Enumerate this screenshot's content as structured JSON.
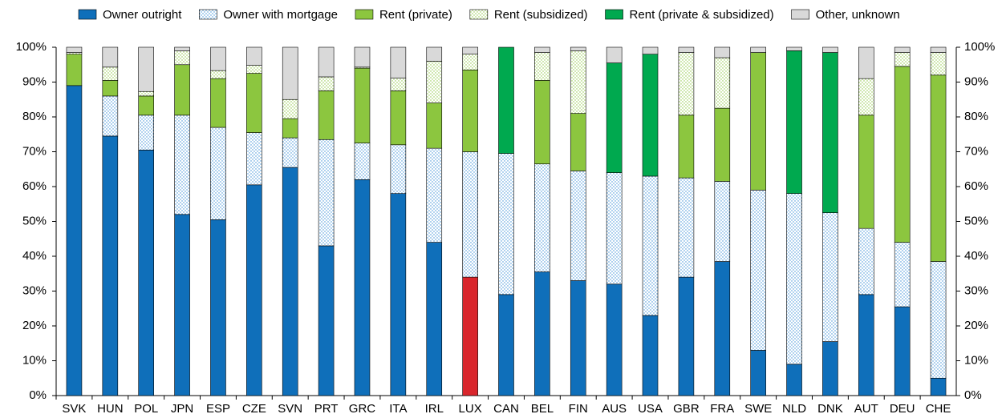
{
  "chart_data": {
    "type": "stacked_bar",
    "categories": [
      "SVK",
      "HUN",
      "POL",
      "JPN",
      "ESP",
      "CZE",
      "SVN",
      "PRT",
      "GRC",
      "ITA",
      "IRL",
      "LUX",
      "CAN",
      "BEL",
      "FIN",
      "AUS",
      "USA",
      "GBR",
      "FRA",
      "SWE",
      "NLD",
      "DNK",
      "AUT",
      "DEU",
      "CHE"
    ],
    "series": [
      {
        "name": "Owner outright",
        "color": "#0f6fba",
        "values": [
          89,
          74.5,
          70.5,
          52,
          50.5,
          60.5,
          65.5,
          43,
          62,
          58,
          44,
          34,
          29,
          35.5,
          33,
          32,
          23,
          34,
          38.5,
          13,
          9,
          15.5,
          29,
          25.5,
          5
        ]
      },
      {
        "name": "Owner with mortgage",
        "color": "#3a8fd6",
        "pattern": "dots",
        "values": [
          0,
          11.5,
          10,
          28.5,
          26.5,
          15,
          8.5,
          30.5,
          10.5,
          14,
          27,
          36,
          40.5,
          31,
          31.5,
          32,
          40,
          28.5,
          23,
          46,
          49,
          37,
          19,
          18.5,
          33.5
        ]
      },
      {
        "name": "Rent (private)",
        "color": "#8cc63f",
        "values": [
          9,
          4.5,
          5.5,
          14.5,
          14,
          17,
          5.5,
          14,
          21.5,
          15.5,
          13,
          23.5,
          0,
          24,
          16.5,
          0,
          0,
          18,
          21,
          39.5,
          0,
          0,
          32.5,
          50.5,
          53.5
        ]
      },
      {
        "name": "Rent (subsidized)",
        "color": "#8cc63f",
        "pattern": "dots",
        "values": [
          0.5,
          3.8,
          1.3,
          4,
          2.3,
          2.3,
          5.5,
          4,
          0.3,
          3.7,
          12,
          4.5,
          0,
          8,
          18,
          0,
          0,
          18,
          14.5,
          0,
          0,
          0,
          10.5,
          4,
          6.5
        ]
      },
      {
        "name": "Rent (private & subsidized)",
        "color": "#00a94f",
        "values": [
          0,
          0,
          0,
          0,
          0,
          0,
          0,
          0,
          0,
          0,
          0,
          0,
          30.5,
          0,
          0,
          31.5,
          35,
          0,
          0,
          0,
          41,
          46,
          0,
          0,
          0
        ]
      },
      {
        "name": "Other, unknown",
        "color": "#d9d9d9",
        "values": [
          1.5,
          5.7,
          12.7,
          1,
          6.7,
          5.2,
          15,
          8.5,
          5.7,
          8.8,
          4,
          2,
          0,
          1.5,
          1,
          4.5,
          2,
          1.5,
          3,
          1.5,
          1,
          1.5,
          9,
          1.5,
          1.5
        ]
      }
    ],
    "highlight": {
      "category": "LUX",
      "series": 0,
      "color": "#d9262c"
    },
    "ylim": [
      0,
      100
    ],
    "yticks": [
      {
        "value": 0,
        "label": "0%"
      },
      {
        "value": 10,
        "label": "10%"
      },
      {
        "value": 20,
        "label": "20%"
      },
      {
        "value": 30,
        "label": "30%"
      },
      {
        "value": 40,
        "label": "40%"
      },
      {
        "value": 50,
        "label": "50%"
      },
      {
        "value": 60,
        "label": "60%"
      },
      {
        "value": 70,
        "label": "70%"
      },
      {
        "value": 80,
        "label": "80%"
      },
      {
        "value": 90,
        "label": "90%"
      },
      {
        "value": 100,
        "label": "100%"
      }
    ],
    "right_axis": true,
    "grid": false,
    "legend": "top"
  }
}
